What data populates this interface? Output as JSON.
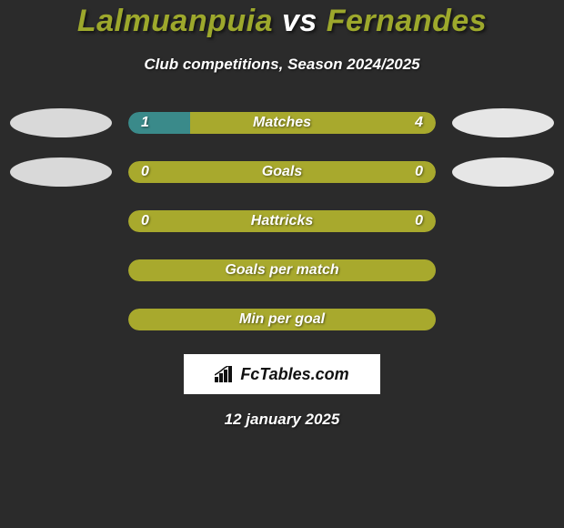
{
  "title": {
    "player1": "Lalmuanpuia",
    "vs": " vs ",
    "player2": "Fernandes",
    "player1_color": "#9da82c",
    "player2_color": "#9da82c",
    "vs_color": "#ffffff"
  },
  "subtitle": "Club competitions, Season 2024/2025",
  "colors": {
    "background": "#2b2b2b",
    "bar_olive": "#a8a92d",
    "bar_teal": "#3a8a8a",
    "text_white": "#ffffff",
    "oval_left": "#d9d9d9",
    "oval_right": "#e6e6e6"
  },
  "oval_rows": [
    0,
    1
  ],
  "stats": [
    {
      "label": "Matches",
      "left_val": "1",
      "right_val": "4",
      "left_pct": 20,
      "left_color": "#3a8a8a",
      "right_color": "#a8a92d"
    },
    {
      "label": "Goals",
      "left_val": "0",
      "right_val": "0",
      "left_pct": 50,
      "left_color": "#a8a92d",
      "right_color": "#a8a92d"
    },
    {
      "label": "Hattricks",
      "left_val": "0",
      "right_val": "0",
      "left_pct": 50,
      "left_color": "#a8a92d",
      "right_color": "#a8a92d"
    },
    {
      "label": "Goals per match",
      "left_val": "",
      "right_val": "",
      "left_pct": 100,
      "left_color": "#a8a92d",
      "right_color": "#a8a92d"
    },
    {
      "label": "Min per goal",
      "left_val": "",
      "right_val": "",
      "left_pct": 100,
      "left_color": "#a8a92d",
      "right_color": "#a8a92d"
    }
  ],
  "brand": "FcTables.com",
  "date": "12 january 2025"
}
